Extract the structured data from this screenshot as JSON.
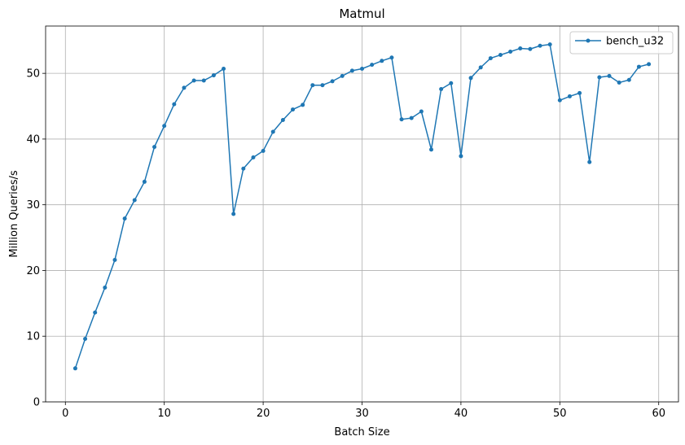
{
  "chart_data": {
    "type": "line",
    "title": "Matmul",
    "xlabel": "Batch Size",
    "ylabel": "Million Queries/s",
    "xlim": [
      -2.0,
      62.0
    ],
    "ylim": [
      0,
      57.2
    ],
    "xticks": [
      0,
      10,
      20,
      30,
      40,
      50,
      60
    ],
    "yticks": [
      0,
      10,
      20,
      30,
      40,
      50
    ],
    "grid": true,
    "legend_position": "top-right",
    "series": [
      {
        "name": "bench_u32",
        "color": "#1f77b4",
        "marker": "circle",
        "x": [
          1,
          2,
          3,
          4,
          5,
          6,
          7,
          8,
          9,
          10,
          11,
          12,
          13,
          14,
          15,
          16,
          17,
          18,
          19,
          20,
          21,
          22,
          23,
          24,
          25,
          26,
          27,
          28,
          29,
          30,
          31,
          32,
          33,
          34,
          35,
          36,
          37,
          38,
          39,
          40,
          41,
          42,
          43,
          44,
          45,
          46,
          47,
          48,
          49,
          50,
          51,
          52,
          53,
          54,
          55,
          56,
          57,
          58,
          59
        ],
        "y": [
          5.1,
          9.6,
          13.6,
          17.4,
          21.6,
          27.9,
          30.7,
          33.5,
          38.8,
          42.0,
          45.3,
          47.8,
          48.9,
          48.9,
          49.7,
          50.7,
          28.6,
          35.5,
          37.2,
          38.2,
          41.1,
          42.9,
          44.5,
          45.2,
          48.2,
          48.2,
          48.8,
          49.6,
          50.4,
          50.7,
          51.3,
          51.9,
          52.4,
          43.0,
          43.2,
          44.2,
          38.4,
          47.6,
          48.5,
          37.4,
          49.3,
          50.9,
          52.3,
          52.8,
          53.3,
          53.8,
          53.7,
          54.2,
          54.4,
          45.9,
          46.5,
          47.0,
          36.5,
          49.4,
          49.6,
          48.6,
          49.0,
          51.0,
          51.4
        ]
      }
    ]
  }
}
